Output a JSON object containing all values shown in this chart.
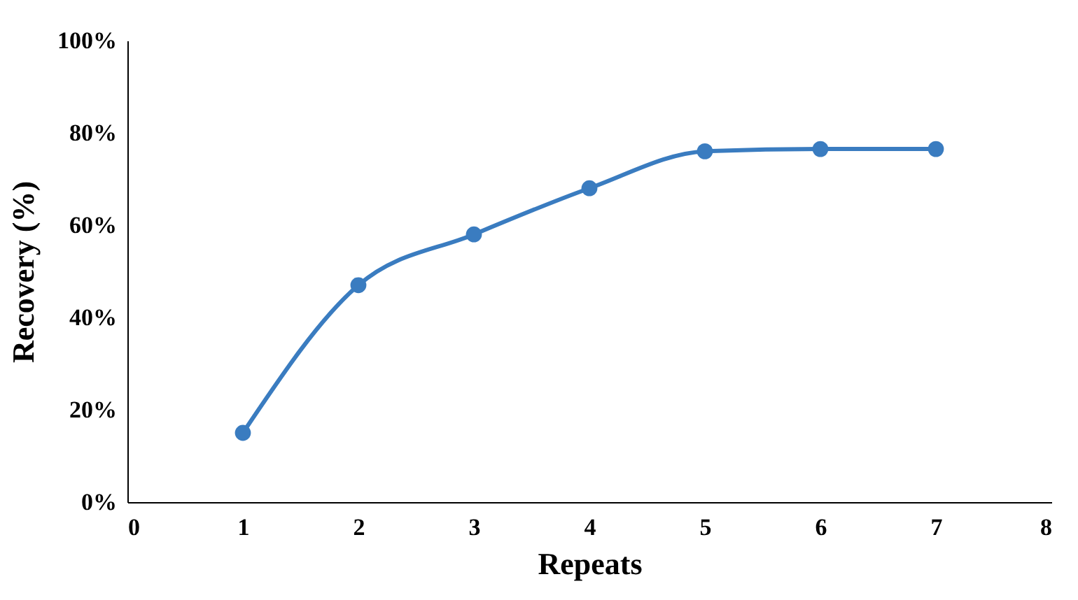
{
  "chart_data": {
    "type": "line",
    "xlabel": "Repeats",
    "ylabel": "Recovery (%)",
    "x": [
      1,
      2,
      3,
      4,
      5,
      6,
      7
    ],
    "series": [
      {
        "color": "#3a7cc0",
        "values": [
          15,
          47,
          58,
          68,
          76,
          76.5,
          76.5
        ]
      }
    ],
    "xlim": [
      0,
      8
    ],
    "xticks": [
      0,
      1,
      2,
      3,
      4,
      5,
      6,
      7,
      8
    ],
    "ylim": [
      0,
      100
    ],
    "yticks": [
      {
        "value": 0,
        "label": "0%"
      },
      {
        "value": 20,
        "label": "20%"
      },
      {
        "value": 40,
        "label": "40%"
      },
      {
        "value": 60,
        "label": "60%"
      },
      {
        "value": 80,
        "label": "80%"
      },
      {
        "value": 100,
        "label": "100%"
      }
    ],
    "grid": false,
    "marker": "circle",
    "line_style": "solid"
  }
}
